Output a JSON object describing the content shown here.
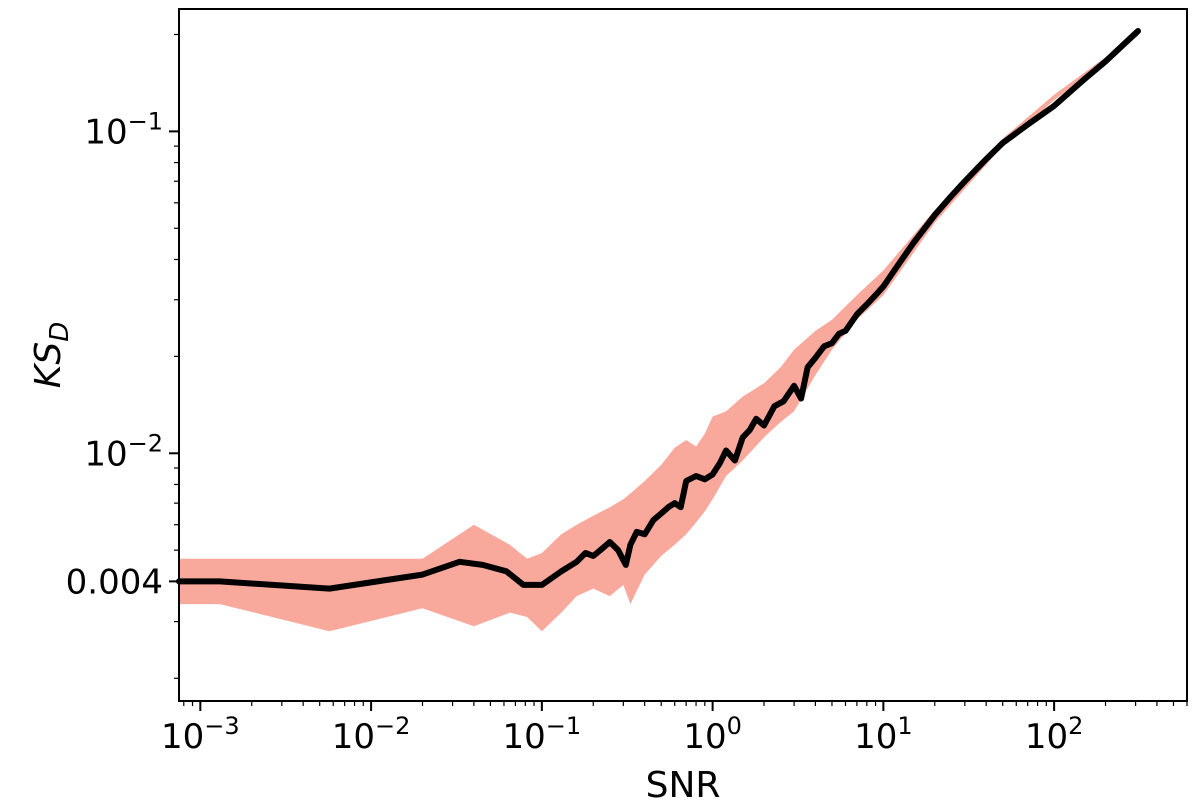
{
  "chart_data": {
    "type": "line",
    "xlabel": "SNR",
    "ylabel": {
      "main": "KS",
      "sub": "D"
    },
    "xscale": "log",
    "yscale": "log",
    "xlim": [
      0.00075,
      600
    ],
    "ylim": [
      0.0017,
      0.24
    ],
    "grid": false,
    "legend": "none",
    "x_ticks": [
      {
        "value": 0.001,
        "base": "10",
        "exp": "−3"
      },
      {
        "value": 0.01,
        "base": "10",
        "exp": "−2"
      },
      {
        "value": 0.1,
        "base": "10",
        "exp": "−1"
      },
      {
        "value": 1,
        "base": "10",
        "exp": "0"
      },
      {
        "value": 10,
        "base": "10",
        "exp": "1"
      },
      {
        "value": 100,
        "base": "10",
        "exp": "2"
      }
    ],
    "y_ticks": [
      {
        "value": 0.1,
        "base": "10",
        "exp": "−1"
      },
      {
        "value": 0.01,
        "base": "10",
        "exp": "−2"
      },
      {
        "value": 0.004,
        "text": "0.004"
      }
    ],
    "colors": {
      "line": "#000000",
      "band": "#f9a99c"
    },
    "series": [
      {
        "kind": "band",
        "x": [
          0.00075,
          0.0013,
          0.0057,
          0.02,
          0.04,
          0.065,
          0.082,
          0.1,
          0.13,
          0.16,
          0.2,
          0.25,
          0.3,
          0.33,
          0.4,
          0.5,
          0.6,
          0.7,
          0.8,
          0.9,
          1.0,
          1.2,
          1.5,
          2.0,
          2.5,
          3.0,
          4.0,
          5.0,
          7.0,
          10,
          20,
          50,
          100,
          200,
          310
        ],
        "upper": [
          0.0047,
          0.0047,
          0.0047,
          0.0047,
          0.006,
          0.0052,
          0.0047,
          0.0049,
          0.0056,
          0.006,
          0.0064,
          0.0068,
          0.0072,
          0.0075,
          0.0082,
          0.0092,
          0.0104,
          0.011,
          0.0105,
          0.0115,
          0.013,
          0.0135,
          0.015,
          0.0165,
          0.0185,
          0.021,
          0.024,
          0.026,
          0.031,
          0.037,
          0.057,
          0.095,
          0.13,
          0.17,
          0.2
        ],
        "lower": [
          0.0034,
          0.0034,
          0.0028,
          0.0033,
          0.0029,
          0.0032,
          0.0031,
          0.0028,
          0.0032,
          0.0036,
          0.0038,
          0.0036,
          0.0039,
          0.0034,
          0.0042,
          0.0048,
          0.0052,
          0.0056,
          0.0061,
          0.0066,
          0.0072,
          0.0085,
          0.0095,
          0.0112,
          0.0125,
          0.0135,
          0.0175,
          0.021,
          0.026,
          0.031,
          0.052,
          0.09,
          0.125,
          0.165,
          0.198
        ]
      },
      {
        "kind": "line",
        "x": [
          0.00075,
          0.0013,
          0.0057,
          0.02,
          0.033,
          0.045,
          0.062,
          0.078,
          0.1,
          0.13,
          0.16,
          0.18,
          0.2,
          0.22,
          0.25,
          0.28,
          0.31,
          0.33,
          0.36,
          0.4,
          0.45,
          0.5,
          0.55,
          0.6,
          0.65,
          0.7,
          0.8,
          0.9,
          1.0,
          1.1,
          1.2,
          1.35,
          1.5,
          1.65,
          1.8,
          2.0,
          2.3,
          2.6,
          3.0,
          3.3,
          3.6,
          4.0,
          4.5,
          5.0,
          5.5,
          6.0,
          7.0,
          8.0,
          9.0,
          10,
          12,
          15,
          20,
          25,
          30,
          40,
          50,
          70,
          100,
          150,
          200,
          310
        ],
        "y": [
          0.004,
          0.004,
          0.0038,
          0.0042,
          0.0046,
          0.0045,
          0.0043,
          0.0039,
          0.0039,
          0.0043,
          0.0046,
          0.0049,
          0.0048,
          0.005,
          0.0053,
          0.005,
          0.0045,
          0.0052,
          0.0057,
          0.0056,
          0.0062,
          0.0065,
          0.0068,
          0.007,
          0.0068,
          0.0082,
          0.0085,
          0.0083,
          0.0086,
          0.0093,
          0.0102,
          0.0095,
          0.0112,
          0.0118,
          0.0128,
          0.0122,
          0.014,
          0.0145,
          0.0162,
          0.0148,
          0.0185,
          0.0198,
          0.0215,
          0.022,
          0.0235,
          0.024,
          0.027,
          0.029,
          0.031,
          0.033,
          0.038,
          0.045,
          0.055,
          0.063,
          0.07,
          0.082,
          0.092,
          0.105,
          0.12,
          0.145,
          0.165,
          0.205
        ]
      }
    ]
  }
}
